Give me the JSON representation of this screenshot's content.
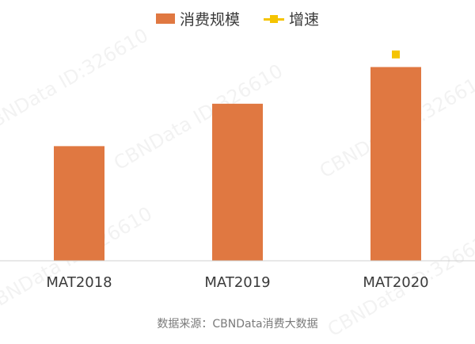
{
  "colors": {
    "bar": "#e07841",
    "growth": "#f5c400",
    "axis": "#d0d0d0",
    "text": "#3a3a3a",
    "source": "#7a7a7a"
  },
  "legend": {
    "bar_label": "消费规模",
    "growth_label": "增速"
  },
  "source": "数据来源：CBNData消费大数据",
  "watermarks": [
    "CBNData ID:326610",
    "CBNData ID:326610",
    "CBNData ID:326610",
    "CBNData ID:326610",
    "CBNData ID:326610"
  ],
  "chart_data": {
    "type": "bar",
    "title": "",
    "xlabel": "",
    "ylabel": "",
    "categories": [
      "MAT2018",
      "MAT2019",
      "MAT2020"
    ],
    "series": [
      {
        "name": "消费规模",
        "type": "bar",
        "values": [
          1.0,
          1.37,
          1.69
        ]
      },
      {
        "name": "增速",
        "type": "line",
        "values": [
          null,
          null,
          1.8
        ]
      }
    ],
    "ylim": [
      0,
      1.86
    ],
    "grid": false,
    "legend_position": "top-center"
  }
}
